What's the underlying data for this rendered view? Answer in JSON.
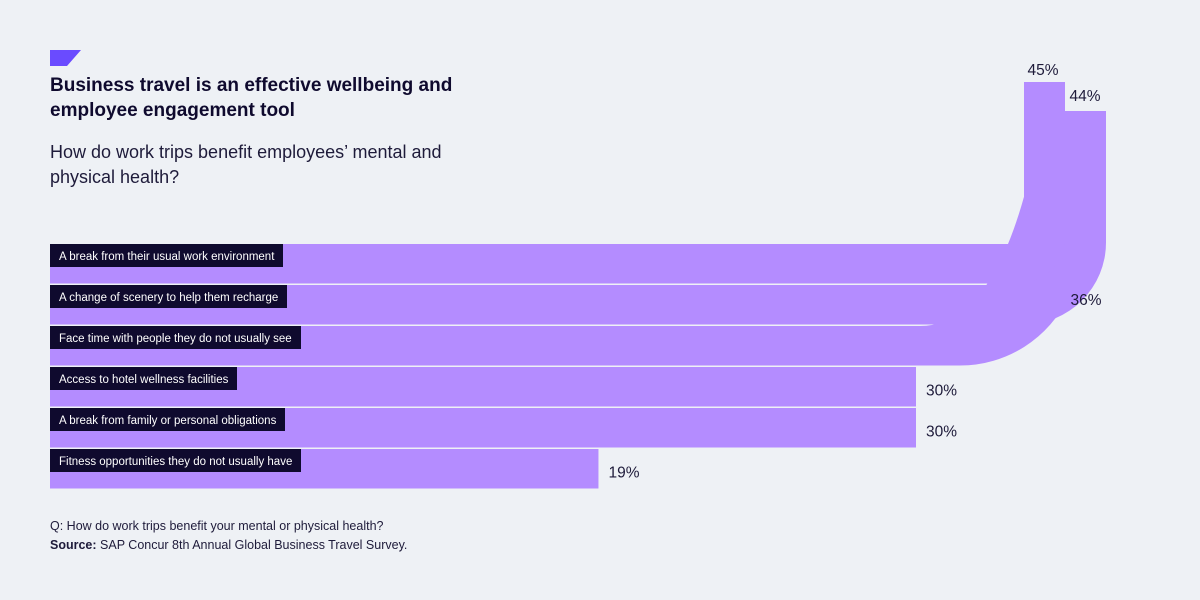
{
  "header": {
    "title": "Business travel is an effective wellbeing and employee engagement tool",
    "subtitle": "How do work trips benefit employees’ mental and physical health?"
  },
  "chart_data": {
    "type": "bar",
    "orientation": "horizontal",
    "categories": [
      "A break from their usual work environment",
      "A change of scenery to help them recharge",
      "Face time with people they do not usually see",
      "Access to hotel wellness facilities",
      "A break from family or personal obligations",
      "Fitness opportunities they do not usually have"
    ],
    "values": [
      45,
      44,
      36,
      30,
      30,
      19
    ],
    "value_labels": [
      "45%",
      "44%",
      "36%",
      "30%",
      "30%",
      "19%"
    ],
    "unit": "%",
    "title": "Business travel is an effective wellbeing and employee engagement tool",
    "subtitle": "How do work trips benefit employees’ mental and physical health?",
    "xlabel": "",
    "ylabel": "",
    "grid": false,
    "legend": "none"
  },
  "footer": {
    "question": "Q: How do work trips benefit your mental or physical health?",
    "source_label": "Source:",
    "source_text": "SAP Concur 8th Annual Global Business Travel Survey."
  },
  "colors": {
    "bar": "#B48CFF",
    "label_bg": "#0F0A2E",
    "accent": "#6A4BFF",
    "background": "#EEF1F5",
    "separator": "#EEF1F5"
  }
}
